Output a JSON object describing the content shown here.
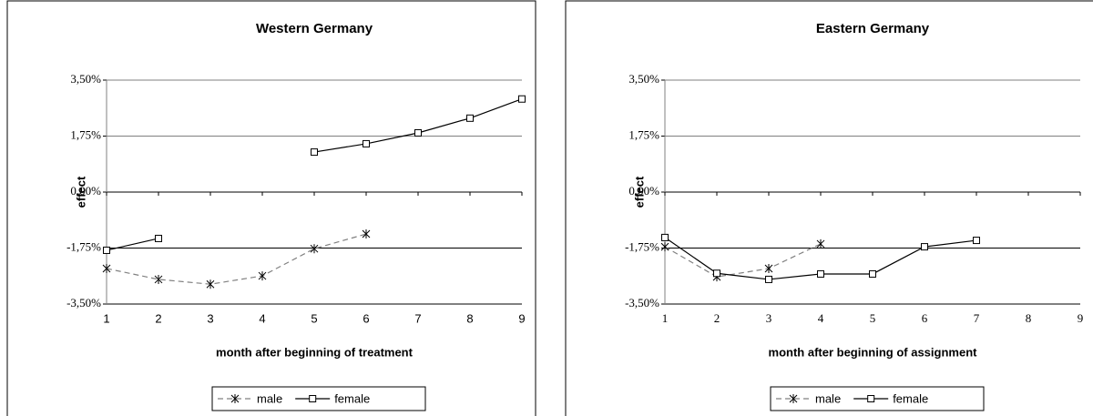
{
  "chart_data": [
    {
      "type": "line",
      "title": "Western Germany",
      "xlabel": "month after beginning of treatment",
      "ylabel": "effect",
      "x": [
        1,
        2,
        3,
        4,
        5,
        6,
        7,
        8,
        9
      ],
      "xlim": [
        1,
        9
      ],
      "xticks": [
        1,
        2,
        3,
        4,
        5,
        6,
        7,
        8,
        9
      ],
      "ylim": [
        -3.5,
        3.5
      ],
      "yticks": [
        {
          "value": -3.5,
          "label": "-3,50%"
        },
        {
          "value": -1.75,
          "label": "-1,75%"
        },
        {
          "value": 0,
          "label": "0,00%"
        },
        {
          "value": 1.75,
          "label": "1,75%"
        },
        {
          "value": 3.5,
          "label": "3,50%"
        }
      ],
      "grid": true,
      "legend": "bottom",
      "series": [
        {
          "name": "male",
          "color": "#808080",
          "style": "dashed",
          "marker": "asterisk",
          "values": [
            -2.39,
            -2.73,
            -2.88,
            -2.62,
            -1.77,
            -1.31,
            null,
            null,
            null
          ]
        },
        {
          "name": "female",
          "color": "#000000",
          "style": "solid",
          "marker": "square",
          "values": [
            -1.82,
            -1.45,
            null,
            null,
            1.25,
            1.51,
            1.85,
            2.31,
            2.91
          ]
        }
      ]
    },
    {
      "type": "line",
      "title": "Eastern Germany",
      "xlabel": "month after beginning of assignment",
      "ylabel": "effect",
      "x": [
        1,
        2,
        3,
        4,
        5,
        6,
        7,
        8,
        9
      ],
      "xlim": [
        1,
        9
      ],
      "xticks": [
        1,
        2,
        3,
        4,
        5,
        6,
        7,
        8,
        9
      ],
      "ylim": [
        -3.5,
        3.5
      ],
      "yticks": [
        {
          "value": -3.5,
          "label": "-3,50%"
        },
        {
          "value": -1.75,
          "label": "-1,75%"
        },
        {
          "value": 0,
          "label": "0,00%"
        },
        {
          "value": 1.75,
          "label": "1,75%"
        },
        {
          "value": 3.5,
          "label": "3,50%"
        }
      ],
      "grid": true,
      "legend": "bottom",
      "series": [
        {
          "name": "male",
          "color": "#808080",
          "style": "dashed",
          "marker": "asterisk",
          "values": [
            -1.71,
            -2.65,
            -2.39,
            -1.62,
            null,
            null,
            null,
            null,
            null
          ]
        },
        {
          "name": "female",
          "color": "#000000",
          "style": "solid",
          "marker": "square",
          "values": [
            -1.42,
            -2.54,
            -2.73,
            -2.56,
            -2.56,
            -1.71,
            -1.51,
            null,
            null
          ]
        }
      ]
    }
  ]
}
